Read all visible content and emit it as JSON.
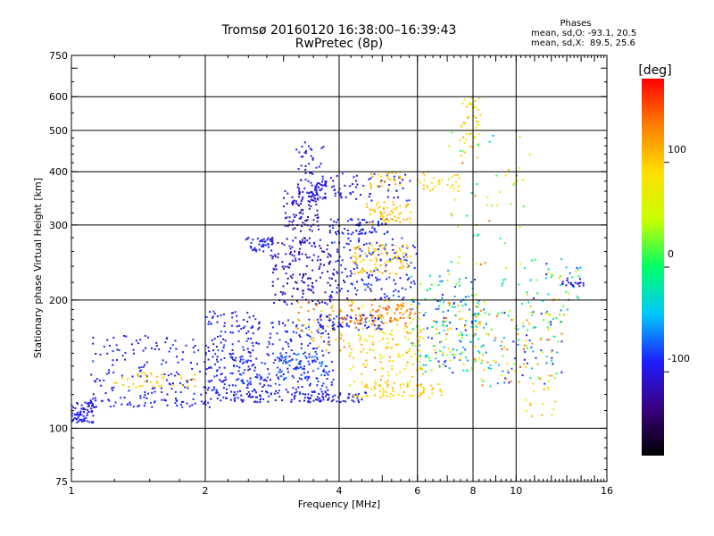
{
  "header": {
    "title": "Tromsø 20160120 16:38:00–16:39:43",
    "subtitle": "RwPretec (8p)"
  },
  "phases_box": {
    "heading": "Phases",
    "line_o": "mean, sd,O: -93.1, 20.5",
    "line_x": "mean, sd,X:  89.5, 25.6"
  },
  "colorbar": {
    "unit": "[deg]",
    "ticks": [
      {
        "label": "100",
        "value": 100
      },
      {
        "label": "0",
        "value": 0
      },
      {
        "label": "-100",
        "value": -100
      }
    ],
    "range": [
      -180,
      180
    ],
    "colors": [
      "#000000",
      "#3a0080",
      "#1e1eff",
      "#00c8ff",
      "#00ff66",
      "#c8ff00",
      "#ffe000",
      "#ff8000",
      "#ff0000"
    ]
  },
  "chart_data": {
    "type": "scatter",
    "title": "Tromsø 20160120 16:38:00–16:39:43",
    "subtitle": "RwPretec (8p)",
    "xlabel": "Frequency [MHz]",
    "ylabel": "Stationary phase Virtual Height [km]",
    "x_scale": "log",
    "y_scale": "log",
    "xlim": [
      1,
      16
    ],
    "ylim": [
      75,
      750
    ],
    "x_ticks": [
      {
        "label": "1",
        "value": 1
      },
      {
        "label": "2",
        "value": 2
      },
      {
        "label": "4",
        "value": 4
      },
      {
        "label": "6",
        "value": 6
      },
      {
        "label": "8",
        "value": 8
      },
      {
        "label": "10",
        "value": 10
      },
      {
        "label": "16",
        "value": 16
      }
    ],
    "y_ticks": [
      {
        "label": "75",
        "value": 75
      },
      {
        "label": "100",
        "value": 100
      },
      {
        "label": "200",
        "value": 200
      },
      {
        "label": "300",
        "value": 300
      },
      {
        "label": "400",
        "value": 400
      },
      {
        "label": "500",
        "value": 500
      },
      {
        "label": "600",
        "value": 600
      },
      {
        "label": "750",
        "value": 750
      }
    ],
    "major_grid_x": [
      2,
      4,
      6,
      8,
      10
    ],
    "major_grid_y": [
      100,
      200,
      300,
      400,
      500,
      600
    ],
    "grid": true,
    "color_by": "phase [deg]",
    "clusters": [
      {
        "f": [
          1.0,
          1.12
        ],
        "h": [
          103,
          115
        ],
        "phase": [
          -105,
          -85
        ],
        "n": 70
      },
      {
        "f": [
          1.1,
          2.05
        ],
        "h": [
          112,
          118
        ],
        "phase": [
          -100,
          -80
        ],
        "n": 60
      },
      {
        "f": [
          2.0,
          4.6
        ],
        "h": [
          115,
          122
        ],
        "phase": [
          -110,
          -85
        ],
        "n": 130
      },
      {
        "f": [
          4.3,
          6.8
        ],
        "h": [
          118,
          128
        ],
        "phase": [
          80,
          110
        ],
        "n": 70
      },
      {
        "f": [
          1.1,
          2.4
        ],
        "h": [
          118,
          165
        ],
        "phase": [
          -110,
          -80
        ],
        "n": 170
      },
      {
        "f": [
          1.25,
          1.9
        ],
        "h": [
          125,
          135
        ],
        "phase": [
          85,
          110
        ],
        "n": 40
      },
      {
        "f": [
          2.0,
          2.6
        ],
        "h": [
          120,
          190
        ],
        "phase": [
          -110,
          -75
        ],
        "n": 110
      },
      {
        "f": [
          2.4,
          3.9
        ],
        "h": [
          120,
          180
        ],
        "phase": [
          -110,
          -70
        ],
        "n": 220
      },
      {
        "f": [
          2.9,
          3.8
        ],
        "h": [
          130,
          150
        ],
        "phase": [
          -100,
          -60
        ],
        "n": 70
      },
      {
        "f": [
          2.45,
          2.85
        ],
        "h": [
          260,
          280
        ],
        "phase": [
          -105,
          -80
        ],
        "n": 40
      },
      {
        "f": [
          2.8,
          3.9
        ],
        "h": [
          195,
          280
        ],
        "phase": [
          -130,
          -90
        ],
        "n": 170
      },
      {
        "f": [
          3.0,
          3.6
        ],
        "h": [
          290,
          360
        ],
        "phase": [
          -125,
          -90
        ],
        "n": 80
      },
      {
        "f": [
          3.2,
          3.7
        ],
        "h": [
          340,
          470
        ],
        "phase": [
          -110,
          -85
        ],
        "n": 55
      },
      {
        "f": [
          3.4,
          3.75
        ],
        "h": [
          340,
          380
        ],
        "phase": [
          -110,
          -90
        ],
        "n": 40
      },
      {
        "f": [
          3.6,
          5.0
        ],
        "h": [
          170,
          185
        ],
        "phase": [
          -105,
          -80
        ],
        "n": 70
      },
      {
        "f": [
          3.8,
          5.2
        ],
        "h": [
          285,
          310
        ],
        "phase": [
          -110,
          -80
        ],
        "n": 70
      },
      {
        "f": [
          3.8,
          6.0
        ],
        "h": [
          200,
          280
        ],
        "phase": [
          -110,
          -70
        ],
        "n": 150
      },
      {
        "f": [
          3.8,
          5.8
        ],
        "h": [
          340,
          400
        ],
        "phase": [
          -110,
          -80
        ],
        "n": 60
      },
      {
        "f": [
          3.2,
          4.3
        ],
        "h": [
          150,
          200
        ],
        "phase": [
          90,
          140
        ],
        "n": 50
      },
      {
        "f": [
          4.2,
          6.2
        ],
        "h": [
          125,
          200
        ],
        "phase": [
          60,
          130
        ],
        "n": 180
      },
      {
        "f": [
          4.0,
          5.8
        ],
        "h": [
          175,
          195
        ],
        "phase": [
          120,
          160
        ],
        "n": 60
      },
      {
        "f": [
          4.3,
          5.8
        ],
        "h": [
          230,
          270
        ],
        "phase": [
          90,
          120
        ],
        "n": 90
      },
      {
        "f": [
          4.6,
          5.8
        ],
        "h": [
          300,
          340
        ],
        "phase": [
          90,
          115
        ],
        "n": 60
      },
      {
        "f": [
          4.7,
          5.5
        ],
        "h": [
          365,
          400
        ],
        "phase": [
          90,
          120
        ],
        "n": 30
      },
      {
        "f": [
          6.0,
          7.5
        ],
        "h": [
          360,
          400
        ],
        "phase": [
          80,
          110
        ],
        "n": 30
      },
      {
        "f": [
          5.8,
          8.3
        ],
        "h": [
          135,
          230
        ],
        "phase": [
          -100,
          40
        ],
        "n": 120
      },
      {
        "f": [
          6.5,
          8.6
        ],
        "h": [
          140,
          200
        ],
        "phase": [
          -80,
          140
        ],
        "n": 80
      },
      {
        "f": [
          7.5,
          8.4
        ],
        "h": [
          455,
          600
        ],
        "phase": [
          60,
          120
        ],
        "n": 40
      },
      {
        "f": [
          7.0,
          10.8
        ],
        "h": [
          200,
          500
        ],
        "phase": [
          -60,
          150
        ],
        "n": 70
      },
      {
        "f": [
          8.0,
          12.8
        ],
        "h": [
          125,
          190
        ],
        "phase": [
          -110,
          160
        ],
        "n": 140
      },
      {
        "f": [
          10.0,
          14.0
        ],
        "h": [
          175,
          250
        ],
        "phase": [
          -110,
          120
        ],
        "n": 60
      },
      {
        "f": [
          12.5,
          14.2
        ],
        "h": [
          215,
          225
        ],
        "phase": [
          -115,
          -95
        ],
        "n": 20
      },
      {
        "f": [
          10.5,
          12.5
        ],
        "h": [
          105,
          130
        ],
        "phase": [
          60,
          130
        ],
        "n": 15
      }
    ]
  }
}
